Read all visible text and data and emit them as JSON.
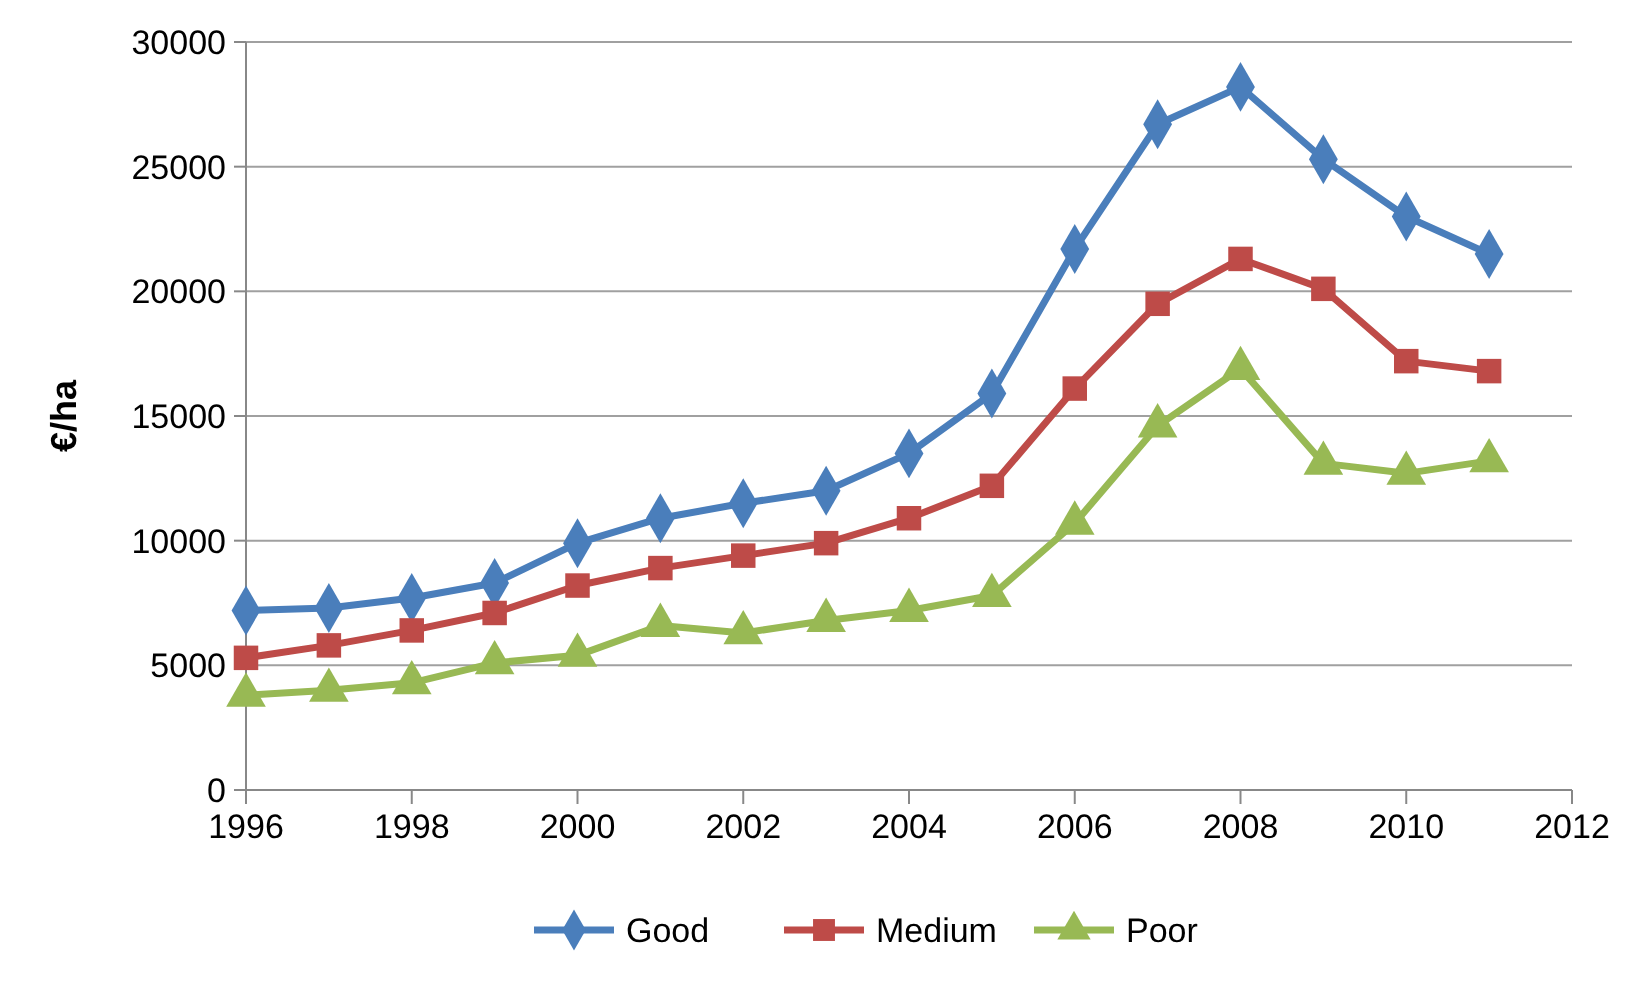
{
  "chart_data": {
    "type": "line",
    "ylabel": "€/ha",
    "x": [
      1996,
      1997,
      1998,
      1999,
      2000,
      2001,
      2002,
      2003,
      2004,
      2005,
      2006,
      2007,
      2008,
      2009,
      2010,
      2011
    ],
    "xlim": [
      1996,
      2012
    ],
    "xticks": [
      1996,
      1998,
      2000,
      2002,
      2004,
      2006,
      2008,
      2010,
      2012
    ],
    "ylim": [
      0,
      30000
    ],
    "yticks": [
      0,
      5000,
      10000,
      15000,
      20000,
      25000,
      30000
    ],
    "grid": "y",
    "legend": "bottom",
    "series": [
      {
        "name": "Good",
        "color": "#4a7ebb",
        "marker": "diamond",
        "values": [
          7200,
          7300,
          7700,
          8300,
          9900,
          10900,
          11500,
          12000,
          13500,
          15900,
          21700,
          26700,
          28200,
          25300,
          23000,
          21500
        ]
      },
      {
        "name": "Medium",
        "color": "#be4b48",
        "marker": "square",
        "values": [
          5300,
          5800,
          6400,
          7100,
          8200,
          8900,
          9400,
          9900,
          10900,
          12200,
          16100,
          19500,
          21300,
          20100,
          17200,
          16800
        ]
      },
      {
        "name": "Poor",
        "color": "#98b954",
        "marker": "triangle",
        "values": [
          3800,
          4000,
          4300,
          5100,
          5400,
          6600,
          6300,
          6800,
          7200,
          7800,
          10700,
          14600,
          16900,
          13100,
          12700,
          13200
        ]
      }
    ]
  }
}
